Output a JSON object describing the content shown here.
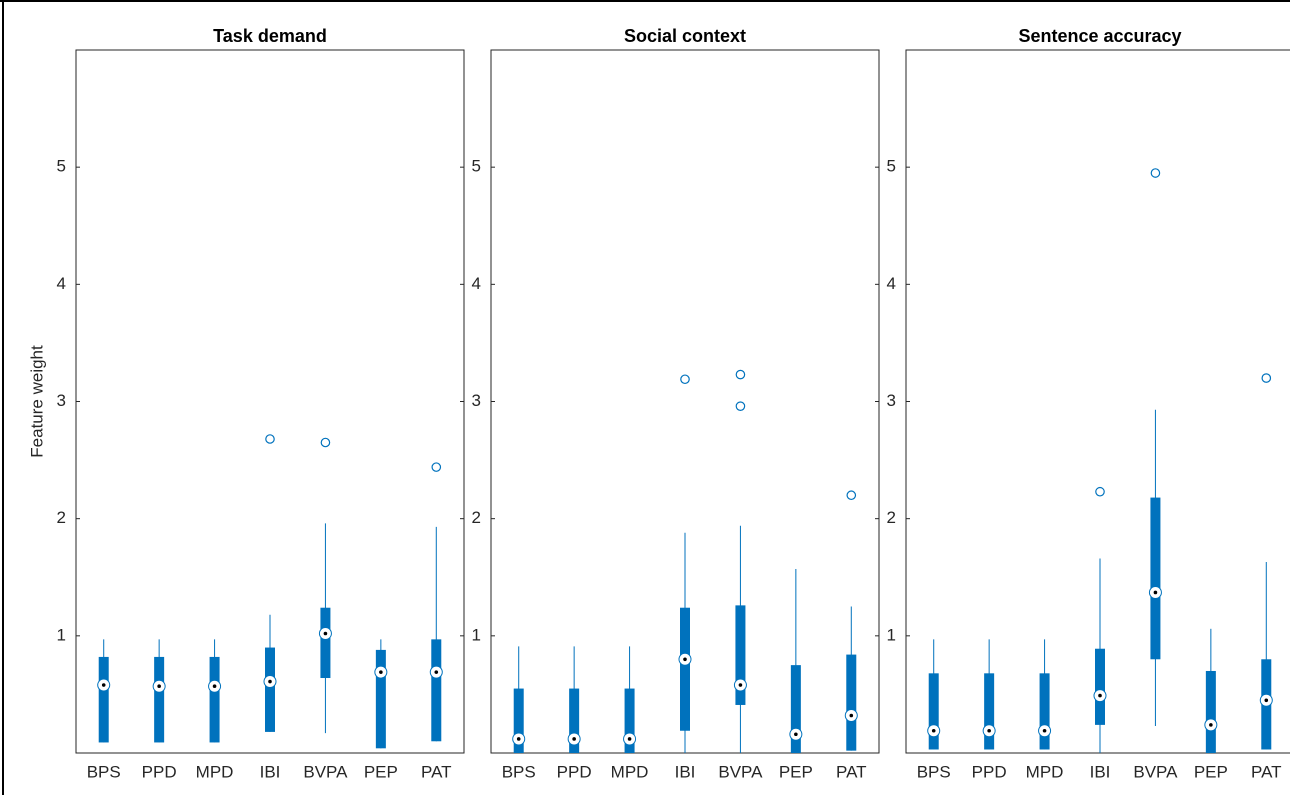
{
  "chart_data": [
    {
      "type": "box",
      "title": "Task demand",
      "ylabel": "Feature weight",
      "color": "#0072bd",
      "categories": [
        "BPS",
        "PPD",
        "MPD",
        "IBI",
        "BVPA",
        "PEP",
        "PAT"
      ],
      "whisker_low": [
        0.09,
        0.09,
        0.09,
        0.18,
        0.17,
        0.04,
        0.1
      ],
      "q1": [
        0.09,
        0.09,
        0.09,
        0.18,
        0.64,
        0.04,
        0.1
      ],
      "median": [
        0.58,
        0.57,
        0.57,
        0.61,
        1.02,
        0.69,
        0.69
      ],
      "q3": [
        0.82,
        0.82,
        0.82,
        0.9,
        1.24,
        0.88,
        0.97
      ],
      "whisker_high": [
        0.97,
        0.97,
        0.97,
        1.18,
        1.96,
        0.97,
        1.93
      ],
      "outliers": [
        [],
        [],
        [],
        [
          2.68
        ],
        [
          2.65
        ],
        [],
        [
          2.44
        ]
      ],
      "ylim": [
        0,
        6
      ],
      "yticks": [
        1,
        2,
        3,
        4,
        5
      ]
    },
    {
      "type": "box",
      "title": "Social context",
      "color": "#0072bd",
      "categories": [
        "BPS",
        "PPD",
        "MPD",
        "IBI",
        "BVPA",
        "PEP",
        "PAT"
      ],
      "whisker_low": [
        0,
        0,
        0,
        0,
        0,
        0,
        0.02
      ],
      "q1": [
        0,
        0,
        0,
        0.19,
        0.41,
        0,
        0.02
      ],
      "median": [
        0.12,
        0.12,
        0.12,
        0.8,
        0.58,
        0.16,
        0.32
      ],
      "q3": [
        0.55,
        0.55,
        0.55,
        1.24,
        1.26,
        0.75,
        0.84
      ],
      "whisker_high": [
        0.91,
        0.91,
        0.91,
        1.88,
        1.94,
        1.57,
        1.25
      ],
      "outliers": [
        [],
        [],
        [],
        [
          3.19
        ],
        [
          3.23,
          2.96
        ],
        [],
        [
          2.2
        ]
      ],
      "ylim": [
        0,
        6
      ],
      "yticks": [
        1,
        2,
        3,
        4,
        5
      ]
    },
    {
      "type": "box",
      "title": "Sentence accuracy",
      "color": "#0072bd",
      "categories": [
        "BPS",
        "PPD",
        "MPD",
        "IBI",
        "BVPA",
        "PEP",
        "PAT"
      ],
      "whisker_low": [
        0.03,
        0.03,
        0.03,
        0,
        0.23,
        0,
        0.03
      ],
      "q1": [
        0.03,
        0.03,
        0.03,
        0.24,
        0.8,
        0,
        0.03
      ],
      "median": [
        0.19,
        0.19,
        0.19,
        0.49,
        1.37,
        0.24,
        0.45
      ],
      "q3": [
        0.68,
        0.68,
        0.68,
        0.89,
        2.18,
        0.7,
        0.8
      ],
      "whisker_high": [
        0.97,
        0.97,
        0.97,
        1.66,
        2.93,
        1.06,
        1.63
      ],
      "outliers": [
        [],
        [],
        [],
        [
          2.23
        ],
        [
          4.95
        ],
        [],
        [
          3.2
        ]
      ],
      "ylim": [
        0,
        6
      ],
      "yticks": [
        1,
        2,
        3,
        4,
        5
      ]
    }
  ]
}
